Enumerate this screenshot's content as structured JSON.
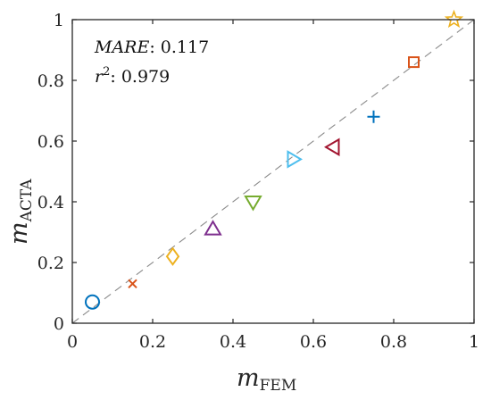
{
  "chart_data": {
    "type": "scatter",
    "xlabel": {
      "main": "m",
      "sub": "FEM"
    },
    "ylabel": {
      "main": "m",
      "sub": "ACTA"
    },
    "xlim": [
      0,
      1
    ],
    "ylim": [
      0,
      1
    ],
    "xticks": [
      "0",
      "0.2",
      "0.4",
      "0.6",
      "0.8",
      "1"
    ],
    "yticks": [
      "0",
      "0.2",
      "0.4",
      "0.6",
      "0.8",
      "1"
    ],
    "reference_line": "y = x (dashed gray)",
    "grid": false,
    "annotations": {
      "mare_label": "MARE",
      "mare_value": ": 0.117",
      "r2_label": "r",
      "r2_sup": "2",
      "r2_value": ":  0.979"
    },
    "points": [
      {
        "x": 0.05,
        "y": 0.07,
        "marker": "circle",
        "color": "#0072BD"
      },
      {
        "x": 0.15,
        "y": 0.13,
        "marker": "x",
        "color": "#D95319"
      },
      {
        "x": 0.25,
        "y": 0.22,
        "marker": "diamond",
        "color": "#EDB120"
      },
      {
        "x": 0.35,
        "y": 0.31,
        "marker": "triangle-up",
        "color": "#7E2F8E"
      },
      {
        "x": 0.45,
        "y": 0.4,
        "marker": "triangle-down",
        "color": "#77AC30"
      },
      {
        "x": 0.55,
        "y": 0.54,
        "marker": "triangle-right",
        "color": "#4DBEEE"
      },
      {
        "x": 0.65,
        "y": 0.58,
        "marker": "triangle-left",
        "color": "#A2142F"
      },
      {
        "x": 0.75,
        "y": 0.68,
        "marker": "plus",
        "color": "#0072BD"
      },
      {
        "x": 0.85,
        "y": 0.86,
        "marker": "square",
        "color": "#D95319"
      },
      {
        "x": 0.95,
        "y": 1.0,
        "marker": "star",
        "color": "#EDB120"
      }
    ]
  }
}
